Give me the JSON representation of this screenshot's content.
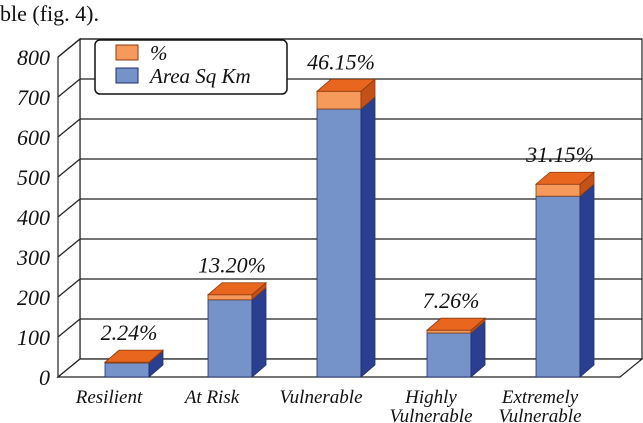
{
  "caption_fragment": "ble (fig. 4).",
  "colors": {
    "area_front": "#7593c8",
    "area_side": "#2a3f8f",
    "area_top": "#8fa8d8",
    "pct_front": "#f59a5a",
    "pct_side": "#c45218",
    "pct_top": "#e8661e",
    "wall": "#ffffff",
    "grid": "#222222"
  },
  "chart_data": {
    "type": "bar",
    "stacked": true,
    "three_d": true,
    "categories": [
      "Resilient",
      "At Risk",
      "Vulnerable",
      "Highly Vulnerable",
      "Extremely Vulnerable"
    ],
    "category_lines": [
      [
        "Resilient"
      ],
      [
        "At Risk"
      ],
      [
        "Vulnerable"
      ],
      [
        "Highly",
        "Vulnerable"
      ],
      [
        "Extremely",
        "Vulnerable"
      ]
    ],
    "series": [
      {
        "name": "Area Sq Km",
        "values": [
          35,
          193,
          670,
          110,
          452
        ]
      },
      {
        "name": "%",
        "values": [
          2.24,
          13.2,
          46.15,
          7.26,
          31.15
        ]
      }
    ],
    "data_labels": [
      "2.24%",
      "13.20%",
      "46.15%",
      "7.26%",
      "31.15%"
    ],
    "ylim": [
      0,
      800
    ],
    "yticks": [
      0,
      100,
      200,
      300,
      400,
      500,
      600,
      700,
      800
    ],
    "grid": true,
    "legend": [
      "%",
      "Area Sq Km"
    ],
    "legend_position": "top-left"
  }
}
